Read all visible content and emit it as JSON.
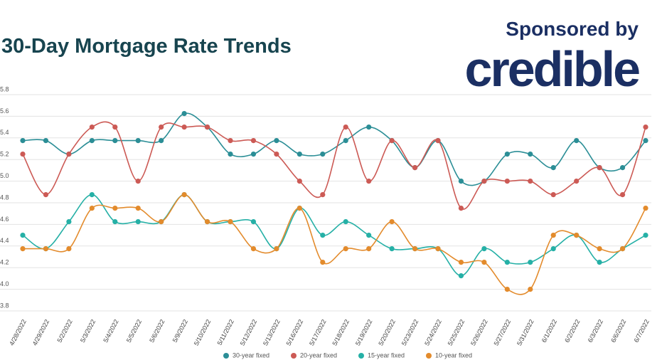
{
  "chart_data": {
    "type": "line",
    "title": "30-Day Mortgage Rate Trends",
    "sponsor_text": "Sponsored by",
    "sponsor_logo": "credible",
    "categories": [
      "4/28/2022",
      "4/29/2022",
      "5/2/2022",
      "5/3/2022",
      "5/4/2022",
      "5/5/2022",
      "5/6/2022",
      "5/9/2022",
      "5/10/2022",
      "5/11/2022",
      "5/12/2022",
      "5/13/2022",
      "5/16/2022",
      "5/17/2022",
      "5/18/2022",
      "5/19/2022",
      "5/20/2022",
      "5/23/2022",
      "5/24/2022",
      "5/25/2022",
      "5/26/2022",
      "5/27/2022",
      "5/31/2022",
      "6/1/2022",
      "6/2/2022",
      "6/3/2022",
      "6/6/2022",
      "6/7/2022"
    ],
    "series": [
      {
        "name": "30-year fixed",
        "color": "#2b8e96",
        "values": [
          5.375,
          5.375,
          5.25,
          5.375,
          5.375,
          5.375,
          5.375,
          5.625,
          5.5,
          5.25,
          5.25,
          5.375,
          5.25,
          5.25,
          5.375,
          5.5,
          5.375,
          5.125,
          5.375,
          5.0,
          5.0,
          5.25,
          5.25,
          5.125,
          5.375,
          5.125,
          5.125,
          5.375
        ]
      },
      {
        "name": "20-year fixed",
        "color": "#cc5a55",
        "values": [
          5.25,
          4.875,
          5.25,
          5.5,
          5.5,
          5.0,
          5.5,
          5.5,
          5.5,
          5.375,
          5.375,
          5.25,
          5.0,
          4.875,
          5.5,
          5.0,
          5.375,
          5.125,
          5.375,
          4.75,
          5.0,
          5.0,
          5.0,
          4.875,
          5.0,
          5.125,
          4.875,
          5.5
        ]
      },
      {
        "name": "15-year fixed",
        "color": "#25b0a6",
        "values": [
          4.5,
          4.375,
          4.625,
          4.875,
          4.625,
          4.625,
          4.625,
          4.875,
          4.625,
          4.625,
          4.625,
          4.375,
          4.75,
          4.5,
          4.625,
          4.5,
          4.375,
          4.375,
          4.375,
          4.125,
          4.375,
          4.25,
          4.25,
          4.375,
          4.5,
          4.25,
          4.375,
          4.5
        ]
      },
      {
        "name": "10-year fixed",
        "color": "#e38b2c",
        "values": [
          4.375,
          4.375,
          4.375,
          4.75,
          4.75,
          4.75,
          4.625,
          4.875,
          4.625,
          4.625,
          4.375,
          4.375,
          4.75,
          4.25,
          4.375,
          4.375,
          4.625,
          4.375,
          4.375,
          4.25,
          4.25,
          4.0,
          4.0,
          4.5,
          4.5,
          4.375,
          4.375,
          4.75
        ]
      }
    ],
    "ylim": [
      3.8,
      5.8
    ],
    "yticks": [
      3.8,
      {
        "value": 4,
        "label": "4.0"
      },
      4.2,
      4.4,
      4.6,
      4.8,
      {
        "value": 5,
        "label": "5.0"
      },
      5.2,
      5.4,
      5.6,
      5.8
    ],
    "grid": true
  }
}
